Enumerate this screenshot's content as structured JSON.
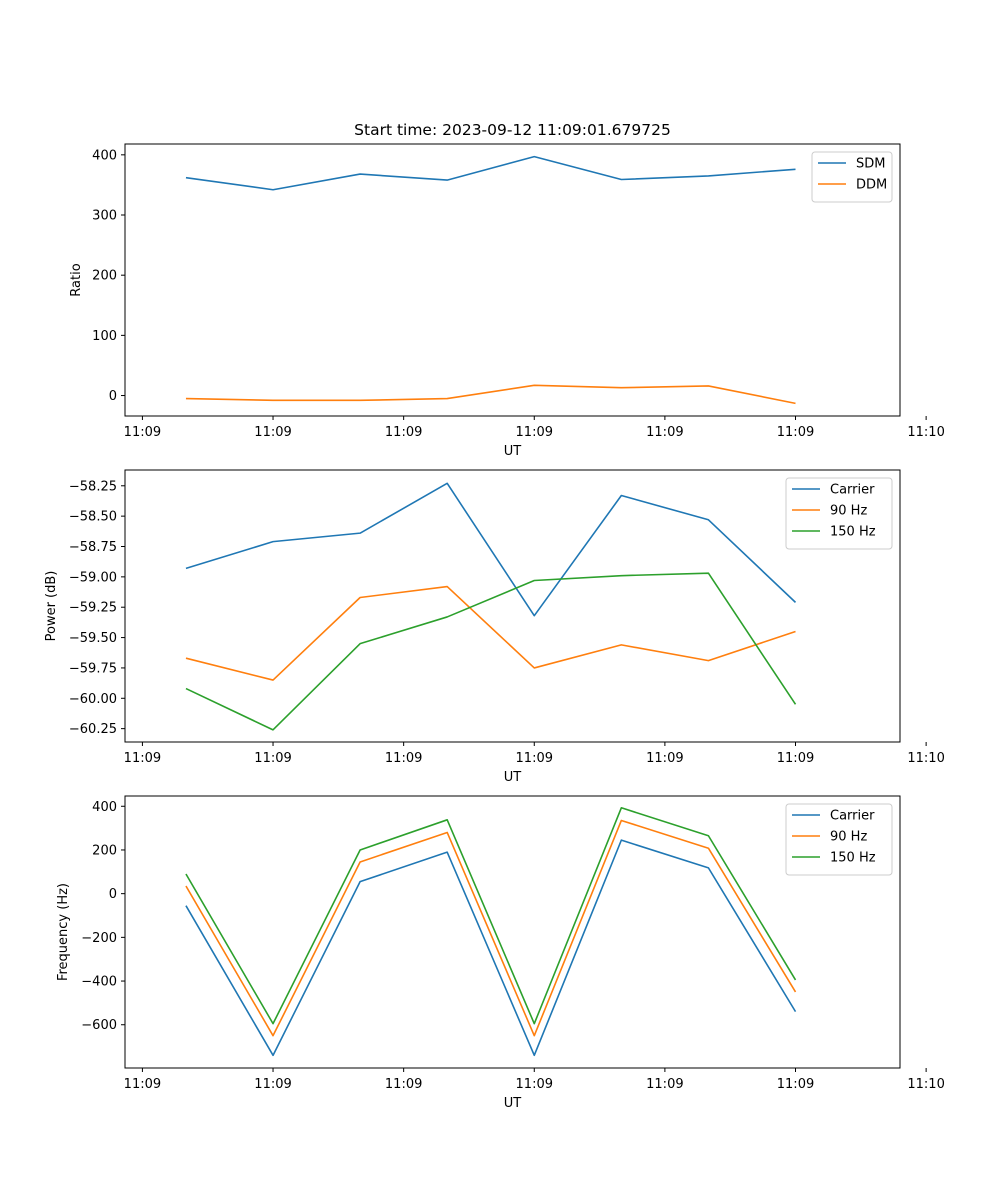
{
  "chart_data": [
    {
      "type": "line",
      "title": "Start time: 2023-09-12 11:09:01.679725",
      "xlabel": "UT",
      "ylabel": "Ratio",
      "x": [
        1,
        2,
        3,
        4,
        5,
        6,
        7,
        8
      ],
      "xlim": [
        0.3,
        9.2
      ],
      "x_ticks": [
        0.5,
        2,
        3.5,
        5,
        6.5,
        8,
        9.5
      ],
      "x_tick_labels": [
        "11:09",
        "11:09",
        "11:09",
        "11:09",
        "11:09",
        "11:09",
        "11:10"
      ],
      "ylim": [
        -34,
        418
      ],
      "y_ticks": [
        0,
        100,
        200,
        300,
        400
      ],
      "y_tick_labels": [
        "0",
        "100",
        "200",
        "300",
        "400"
      ],
      "legend": "upper right",
      "series": [
        {
          "name": "SDM",
          "color": "#1f77b4",
          "values": [
            362,
            342,
            368,
            358,
            397,
            359,
            365,
            376
          ]
        },
        {
          "name": "DDM",
          "color": "#ff7f0e",
          "values": [
            -5,
            -8,
            -8,
            -5,
            17,
            13,
            16,
            -13
          ]
        }
      ]
    },
    {
      "type": "line",
      "title": "",
      "xlabel": "UT",
      "ylabel": "Power (dB)",
      "x": [
        1,
        2,
        3,
        4,
        5,
        6,
        7,
        8
      ],
      "xlim": [
        0.3,
        9.2
      ],
      "x_ticks": [
        0.5,
        2,
        3.5,
        5,
        6.5,
        8,
        9.5
      ],
      "x_tick_labels": [
        "11:09",
        "11:09",
        "11:09",
        "11:09",
        "11:09",
        "11:09",
        "11:10"
      ],
      "ylim": [
        -60.36,
        -58.12
      ],
      "y_ticks": [
        -58.25,
        -58.5,
        -58.75,
        -59.0,
        -59.25,
        -59.5,
        -59.75,
        -60.0,
        -60.25
      ],
      "y_tick_labels": [
        "−58.25",
        "−58.50",
        "−58.75",
        "−59.00",
        "−59.25",
        "−59.50",
        "−59.75",
        "−60.00",
        "−60.25"
      ],
      "legend": "upper right",
      "series": [
        {
          "name": "Carrier",
          "color": "#1f77b4",
          "values": [
            -58.93,
            -58.71,
            -58.64,
            -58.23,
            -59.32,
            -58.33,
            -58.53,
            -59.21
          ]
        },
        {
          "name": "90 Hz",
          "color": "#ff7f0e",
          "values": [
            -59.67,
            -59.85,
            -59.17,
            -59.08,
            -59.75,
            -59.56,
            -59.69,
            -59.45
          ]
        },
        {
          "name": "150 Hz",
          "color": "#2ca02c",
          "values": [
            -59.92,
            -60.26,
            -59.55,
            -59.33,
            -59.03,
            -58.99,
            -58.97,
            -60.05
          ]
        }
      ]
    },
    {
      "type": "line",
      "title": "",
      "xlabel": "UT",
      "ylabel": "Frequency (Hz)",
      "x": [
        1,
        2,
        3,
        4,
        5,
        6,
        7,
        8
      ],
      "xlim": [
        0.3,
        9.2
      ],
      "x_ticks": [
        0.5,
        2,
        3.5,
        5,
        6.5,
        8,
        9.5
      ],
      "x_tick_labels": [
        "11:09",
        "11:09",
        "11:09",
        "11:09",
        "11:09",
        "11:09",
        "11:10"
      ],
      "ylim": [
        -798,
        447
      ],
      "y_ticks": [
        400,
        200,
        0,
        -200,
        -400,
        -600
      ],
      "y_tick_labels": [
        "400",
        "200",
        "0",
        "−200",
        "−400",
        "−600"
      ],
      "legend": "upper right",
      "series": [
        {
          "name": "Carrier",
          "color": "#1f77b4",
          "values": [
            -55,
            -740,
            55,
            190,
            -740,
            245,
            118,
            -540
          ]
        },
        {
          "name": "90 Hz",
          "color": "#ff7f0e",
          "values": [
            35,
            -650,
            145,
            280,
            -650,
            335,
            208,
            -450
          ]
        },
        {
          "name": "150 Hz",
          "color": "#2ca02c",
          "values": [
            90,
            -595,
            200,
            338,
            -595,
            393,
            265,
            -395
          ]
        }
      ]
    }
  ]
}
